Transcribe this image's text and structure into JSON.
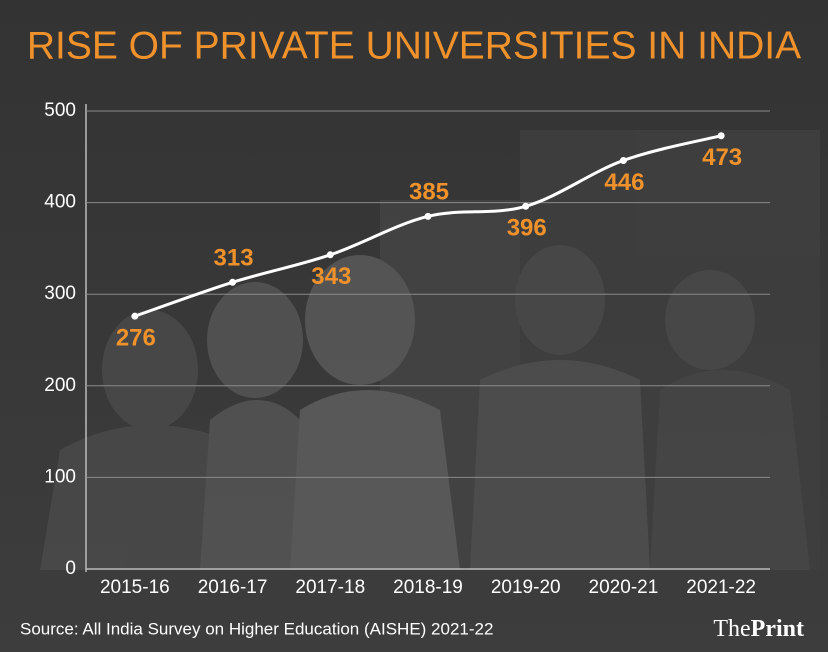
{
  "chart_data": {
    "type": "line",
    "title": "RISE OF PRIVATE UNIVERSITIES IN INDIA",
    "categories": [
      "2015-16",
      "2016-17",
      "2017-18",
      "2018-19",
      "2019-20",
      "2020-21",
      "2021-22"
    ],
    "values": [
      276,
      313,
      343,
      385,
      396,
      446,
      473
    ],
    "color": "#ffffff",
    "label_color": "#f0922b",
    "ylim": [
      0,
      500
    ],
    "yticks": [
      0,
      100,
      200,
      300,
      400,
      500
    ],
    "grid": true,
    "source": "Source: All India Survey on Higher Education (AISHE) 2021-22"
  },
  "brand": {
    "first": "The",
    "second": "Print"
  }
}
